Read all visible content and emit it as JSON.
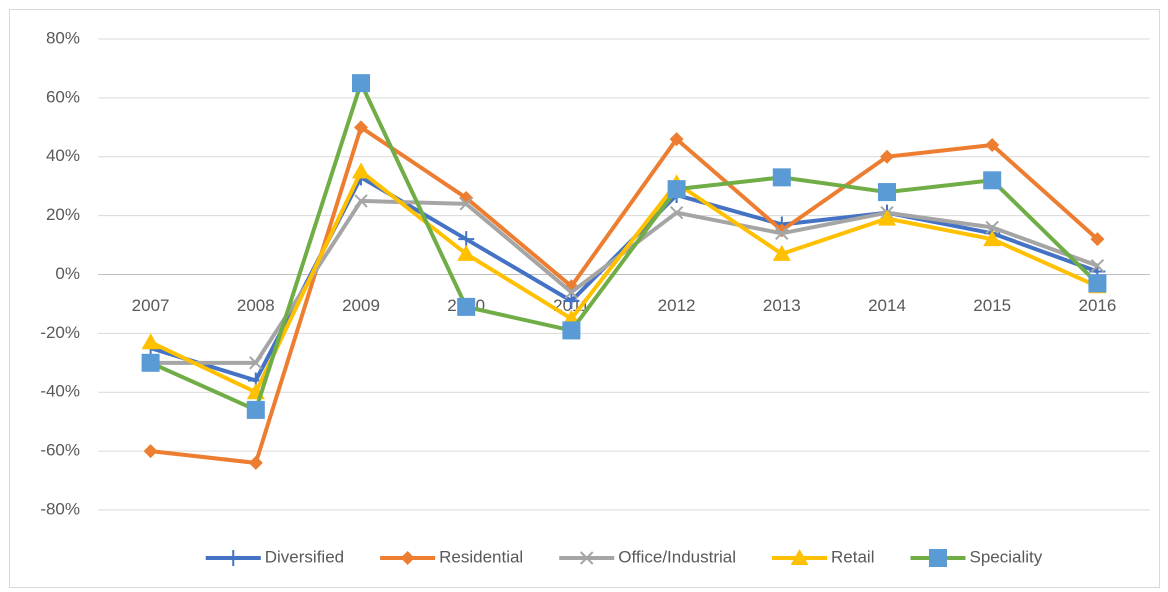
{
  "chart_data": {
    "type": "line",
    "categories": [
      "2007",
      "2008",
      "2009",
      "2010",
      "2011",
      "2012",
      "2013",
      "2014",
      "2015",
      "2016"
    ],
    "series": [
      {
        "name": "Diversified",
        "color": "#4472c4",
        "marker": "plus",
        "marker_color": "#4472c4",
        "values": [
          -25,
          -36,
          33,
          12,
          -9,
          27,
          17,
          21,
          14,
          1
        ]
      },
      {
        "name": "Residential",
        "color": "#ed7d31",
        "marker": "diamond",
        "marker_color": "#ed7d31",
        "values": [
          -60,
          -64,
          50,
          26,
          -4,
          46,
          15,
          40,
          44,
          12
        ]
      },
      {
        "name": "Office/Industrial",
        "color": "#a5a5a5",
        "marker": "cross",
        "marker_color": "#a5a5a5",
        "values": [
          -30,
          -30,
          25,
          24,
          -6,
          21,
          14,
          21,
          16,
          3
        ]
      },
      {
        "name": "Retail",
        "color": "#ffc000",
        "marker": "triangle",
        "marker_color": "#ffc000",
        "values": [
          -23,
          -40,
          35,
          7,
          -15,
          31,
          7,
          19,
          12,
          -4
        ]
      },
      {
        "name": "Speciality",
        "color": "#70ad47",
        "marker": "square",
        "marker_color": "#5b9bd5",
        "values": [
          -30,
          -46,
          65,
          -11,
          -19,
          29,
          33,
          28,
          32,
          -3
        ]
      }
    ],
    "ylim": [
      -80,
      80
    ],
    "yticks": [
      {
        "value": -80,
        "label": "-80%"
      },
      {
        "value": -60,
        "label": "-60%"
      },
      {
        "value": -40,
        "label": "-40%"
      },
      {
        "value": -20,
        "label": "-20%"
      },
      {
        "value": 0,
        "label": "0%"
      },
      {
        "value": 20,
        "label": "20%"
      },
      {
        "value": 40,
        "label": "40%"
      },
      {
        "value": 60,
        "label": "60%"
      },
      {
        "value": 80,
        "label": "80%"
      }
    ],
    "grid": true,
    "legend": "bottom"
  }
}
